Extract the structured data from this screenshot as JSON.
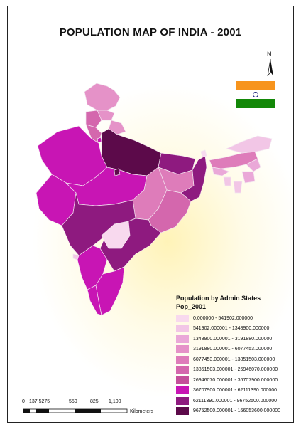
{
  "title": "POPULATION MAP OF INDIA - 2001",
  "north_label": "N",
  "flag": {
    "saffron": "#f7941d",
    "white": "#ffffff",
    "green": "#138808",
    "wheel": "#1a237e"
  },
  "legend": {
    "title": "Population by Admin States",
    "field": "Pop_2001",
    "classes": [
      {
        "label": "0.000000 - 541902.000000",
        "color": "#f8d9ee"
      },
      {
        "label": "541902.000001 - 1348900.000000",
        "color": "#f2c6e6"
      },
      {
        "label": "1348900.000001 - 3191880.000000",
        "color": "#eaa8d8"
      },
      {
        "label": "3191880.000001 - 6077453.000000",
        "color": "#e592c8"
      },
      {
        "label": "6077453.000001 - 13851503.000000",
        "color": "#de7cba"
      },
      {
        "label": "13851503.000001 - 26946070.000000",
        "color": "#d467ad"
      },
      {
        "label": "26946070.000001 - 36707900.000000",
        "color": "#c44f9a"
      },
      {
        "label": "36707900.000001 - 62111390.000000",
        "color": "#c815b4"
      },
      {
        "label": "62111390.000001 - 96752500.000000",
        "color": "#8e1a7f"
      },
      {
        "label": "96752500.000001 - 166053600.000000",
        "color": "#5c0a4a"
      }
    ]
  },
  "scale": {
    "ticks": [
      "0",
      "137.5275",
      "550",
      "825",
      "1,100"
    ],
    "unit": "Kilometers"
  }
}
